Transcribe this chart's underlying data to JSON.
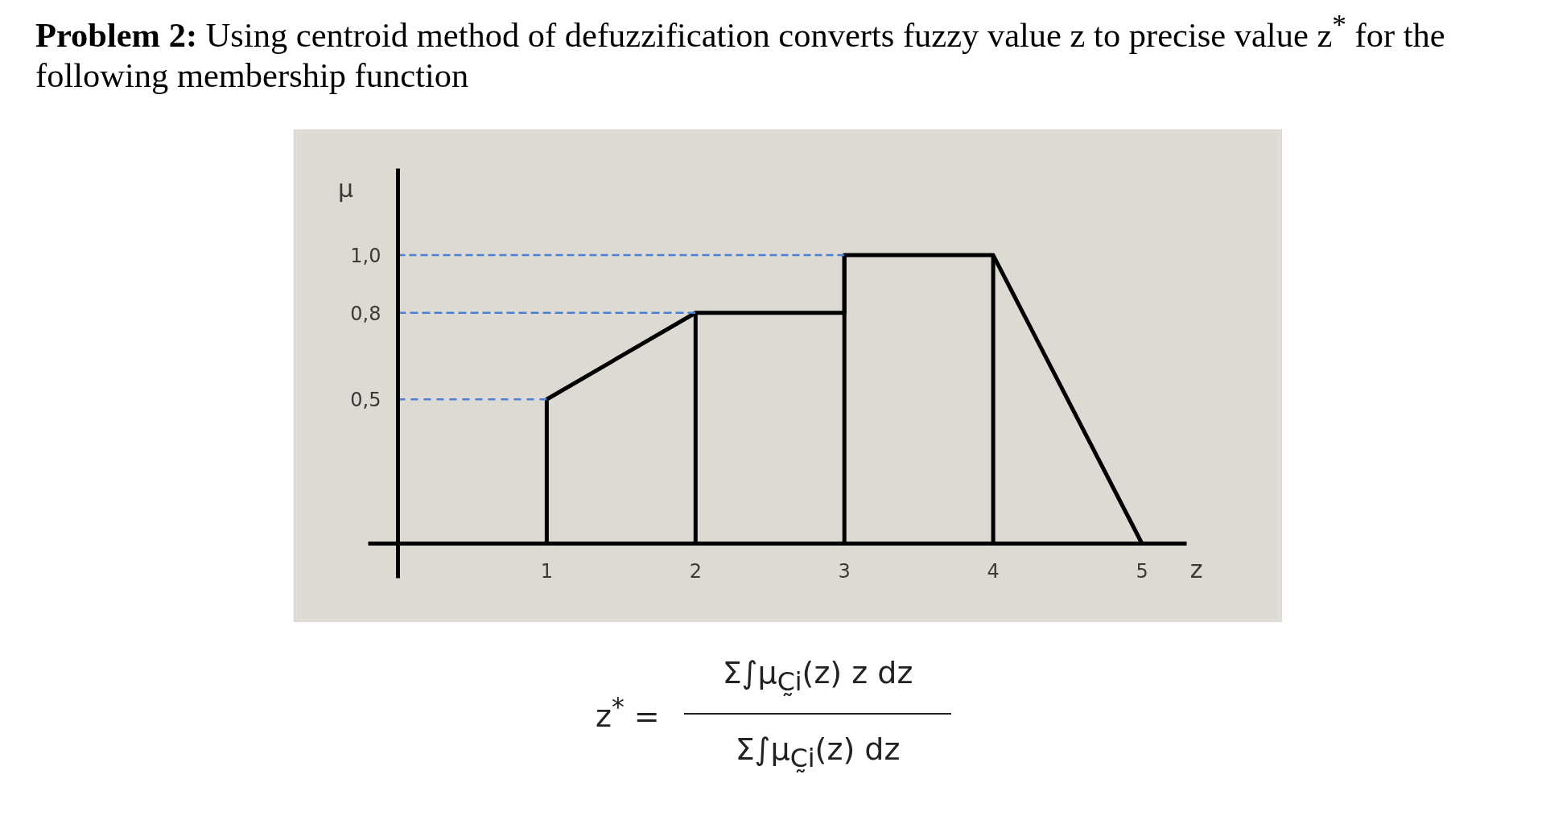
{
  "chart_data": {
    "type": "line",
    "title": "Problem 2: Using centroid method of defuzzification converts fuzzy value z to precise value z$^{*}$ for the following membership function",
    "xlabel": "z",
    "ylabel": "μ",
    "series": [
      {
        "color": "#000000",
        "x": [
          1,
          1,
          2,
          3,
          3,
          4,
          5
        ],
        "values": [
          0,
          0.5,
          0.8,
          0.8,
          1,
          1,
          0
        ]
      },
      {
        "color": "#000000",
        "x": [
          2,
          2
        ],
        "values": [
          0,
          0.8
        ]
      },
      {
        "color": "#000000",
        "x": [
          3,
          3
        ],
        "values": [
          0,
          1
        ]
      },
      {
        "color": "#000000",
        "x": [
          4,
          4
        ],
        "values": [
          0,
          1
        ]
      },
      {
        "color": "#4a7fd4",
        "line_style": "dashed",
        "x": [
          0,
          1
        ],
        "values": [
          0.5,
          0.5
        ]
      },
      {
        "color": "#4a7fd4",
        "line_style": "dashed",
        "x": [
          0,
          2
        ],
        "values": [
          0.8,
          0.8
        ]
      },
      {
        "color": "#4a7fd4",
        "line_style": "dashed",
        "x": [
          0,
          3
        ],
        "values": [
          1,
          1
        ]
      }
    ],
    "xlim": [
      -0.2,
      5.3
    ],
    "ylim": [
      -0.12,
      1.3
    ],
    "xticks": [
      1,
      2,
      3,
      4,
      5
    ],
    "yticks": [
      {
        "value": 0.5,
        "label": "0,5"
      },
      {
        "value": 0.8,
        "label": "0,8"
      },
      {
        "value": 1,
        "label": "1,0"
      }
    ],
    "grid": false,
    "line_style": "solid",
    "annotations": [
      "z$^{*}$ =",
      "Σ∫μ$_{C̰i}$(z) z dz",
      "Σ∫μ$_{C̰i}$(z) dz"
    ]
  }
}
